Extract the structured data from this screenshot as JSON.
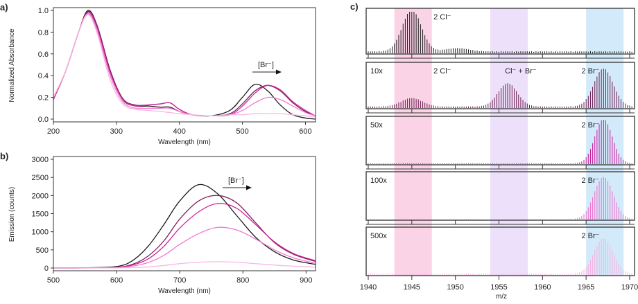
{
  "chart_data": [
    {
      "panel": "a)",
      "type": "line",
      "xlabel": "Wavelength (nm)",
      "ylabel": "Normalized Absorbance",
      "xlim": [
        200,
        616
      ],
      "ylim": [
        0,
        1.0
      ],
      "xticks": [
        200,
        300,
        400,
        500,
        600
      ],
      "yticks": [
        "0.0",
        "0.2",
        "0.4",
        "0.6",
        "0.8",
        "1.0"
      ],
      "annotation": "[Br⁻]",
      "x": [
        200,
        220,
        240,
        255,
        270,
        290,
        310,
        330,
        350,
        370,
        385,
        400,
        420,
        450,
        480,
        500,
        520,
        540,
        560,
        580,
        600,
        616
      ],
      "series": [
        {
          "color": "#1a1a1a",
          "values": [
            0.18,
            0.45,
            0.8,
            1.0,
            0.85,
            0.45,
            0.18,
            0.12,
            0.12,
            0.11,
            0.11,
            0.07,
            0.04,
            0.03,
            0.08,
            0.2,
            0.32,
            0.26,
            0.13,
            0.04,
            0.01,
            0.0
          ]
        },
        {
          "color": "#7d1f5e",
          "values": [
            0.18,
            0.45,
            0.8,
            0.99,
            0.85,
            0.45,
            0.19,
            0.13,
            0.13,
            0.14,
            0.15,
            0.09,
            0.04,
            0.03,
            0.05,
            0.14,
            0.26,
            0.31,
            0.26,
            0.15,
            0.07,
            0.03
          ]
        },
        {
          "color": "#d4239a",
          "values": [
            0.18,
            0.45,
            0.8,
            0.98,
            0.83,
            0.43,
            0.18,
            0.12,
            0.13,
            0.14,
            0.15,
            0.09,
            0.04,
            0.03,
            0.04,
            0.12,
            0.24,
            0.31,
            0.27,
            0.16,
            0.08,
            0.03
          ]
        },
        {
          "color": "#f07ad0",
          "values": [
            0.2,
            0.45,
            0.8,
            0.97,
            0.8,
            0.4,
            0.16,
            0.1,
            0.1,
            0.1,
            0.1,
            0.07,
            0.04,
            0.03,
            0.04,
            0.08,
            0.15,
            0.2,
            0.18,
            0.12,
            0.06,
            0.03
          ]
        },
        {
          "color": "#f9b6e6",
          "values": [
            0.2,
            0.45,
            0.8,
            0.96,
            0.78,
            0.36,
            0.14,
            0.09,
            0.08,
            0.07,
            0.06,
            0.05,
            0.04,
            0.03,
            0.04,
            0.04,
            0.05,
            0.05,
            0.05,
            0.04,
            0.03,
            0.02
          ]
        }
      ]
    },
    {
      "panel": "b)",
      "type": "line",
      "xlabel": "Wavelength (nm)",
      "ylabel": "Emission (counts)",
      "xlim": [
        500,
        915
      ],
      "ylim": [
        0,
        3000
      ],
      "xticks": [
        500,
        600,
        700,
        800,
        900
      ],
      "yticks": [
        "0",
        "500",
        "1000",
        "1500",
        "2000",
        "2500",
        "3000"
      ],
      "annotation": "[Br⁻]",
      "x": [
        500,
        550,
        600,
        625,
        650,
        675,
        700,
        730,
        760,
        790,
        820,
        850,
        880,
        915
      ],
      "series": [
        {
          "color": "#1a1a1a",
          "values": [
            0,
            5,
            40,
            200,
            600,
            1200,
            1850,
            2300,
            2050,
            1450,
            850,
            450,
            220,
            100
          ]
        },
        {
          "color": "#7d1f5e",
          "values": [
            0,
            3,
            20,
            100,
            330,
            750,
            1350,
            1850,
            2000,
            1800,
            1250,
            700,
            380,
            180
          ]
        },
        {
          "color": "#d4239a",
          "values": [
            0,
            2,
            15,
            80,
            250,
            600,
            1100,
            1550,
            1780,
            1650,
            1200,
            720,
            400,
            200
          ]
        },
        {
          "color": "#f07ad0",
          "values": [
            0,
            1,
            10,
            50,
            150,
            350,
            650,
            950,
            1120,
            1050,
            800,
            500,
            280,
            130
          ]
        },
        {
          "color": "#f9b6e6",
          "values": [
            0,
            0,
            2,
            10,
            30,
            70,
            120,
            160,
            175,
            160,
            120,
            80,
            50,
            25
          ]
        }
      ]
    },
    {
      "panel": "c)",
      "type": "bar",
      "xlabel": "m/z",
      "xlim": [
        1940,
        1970.5
      ],
      "xticks": [
        1940,
        1945,
        1950,
        1955,
        1960,
        1965,
        1970
      ],
      "bands": [
        {
          "range": [
            1943,
            1947.3
          ],
          "color": "#fbd3e6"
        },
        {
          "range": [
            1954,
            1958.3
          ],
          "color": "#ece0fb"
        },
        {
          "range": [
            1965,
            1969.3
          ],
          "color": "#d3eafb"
        }
      ],
      "subpanels": [
        {
          "label": "",
          "color": "#1a1a1a",
          "baseline": 0.05,
          "envelopes": [
            {
              "center": 1945,
              "height": 1.0,
              "width": 1.1
            },
            {
              "center": 1950.2,
              "height": 0.08,
              "width": 1.3
            }
          ],
          "annotations": [
            {
              "text": "2 Cl⁻",
              "at": 1948.5
            }
          ]
        },
        {
          "label": "10x",
          "color": "#6b1a4f",
          "baseline": 0.04,
          "envelopes": [
            {
              "center": 1945,
              "height": 0.2,
              "width": 1.2
            },
            {
              "center": 1956,
              "height": 0.55,
              "width": 1.1
            },
            {
              "center": 1967,
              "height": 0.9,
              "width": 1.1
            }
          ],
          "annotations": [
            {
              "text": "2 Cl⁻",
              "at": 1948.5
            },
            {
              "text": "Cl⁻ + Br⁻",
              "at": 1957.5
            },
            {
              "text": "2 Br⁻",
              "at": 1965.5
            }
          ]
        },
        {
          "label": "50x",
          "color": "#c8189a",
          "baseline": 0.02,
          "envelopes": [
            {
              "center": 1967,
              "height": 1.0,
              "width": 1.0
            }
          ],
          "annotations": [
            {
              "text": "2 Br⁻",
              "at": 1965.5
            }
          ]
        },
        {
          "label": "100x",
          "color": "#ec6cc9",
          "baseline": 0.01,
          "envelopes": [
            {
              "center": 1967,
              "height": 0.95,
              "width": 1.1
            }
          ],
          "annotations": [
            {
              "text": "2 Br⁻",
              "at": 1965.5
            }
          ]
        },
        {
          "label": "500x",
          "color": "#f5b0e0",
          "baseline": 0.03,
          "envelopes": [
            {
              "center": 1967,
              "height": 0.8,
              "width": 1.1
            }
          ],
          "annotations": [
            {
              "text": "2 Br⁻",
              "at": 1965.5
            }
          ]
        }
      ]
    }
  ]
}
